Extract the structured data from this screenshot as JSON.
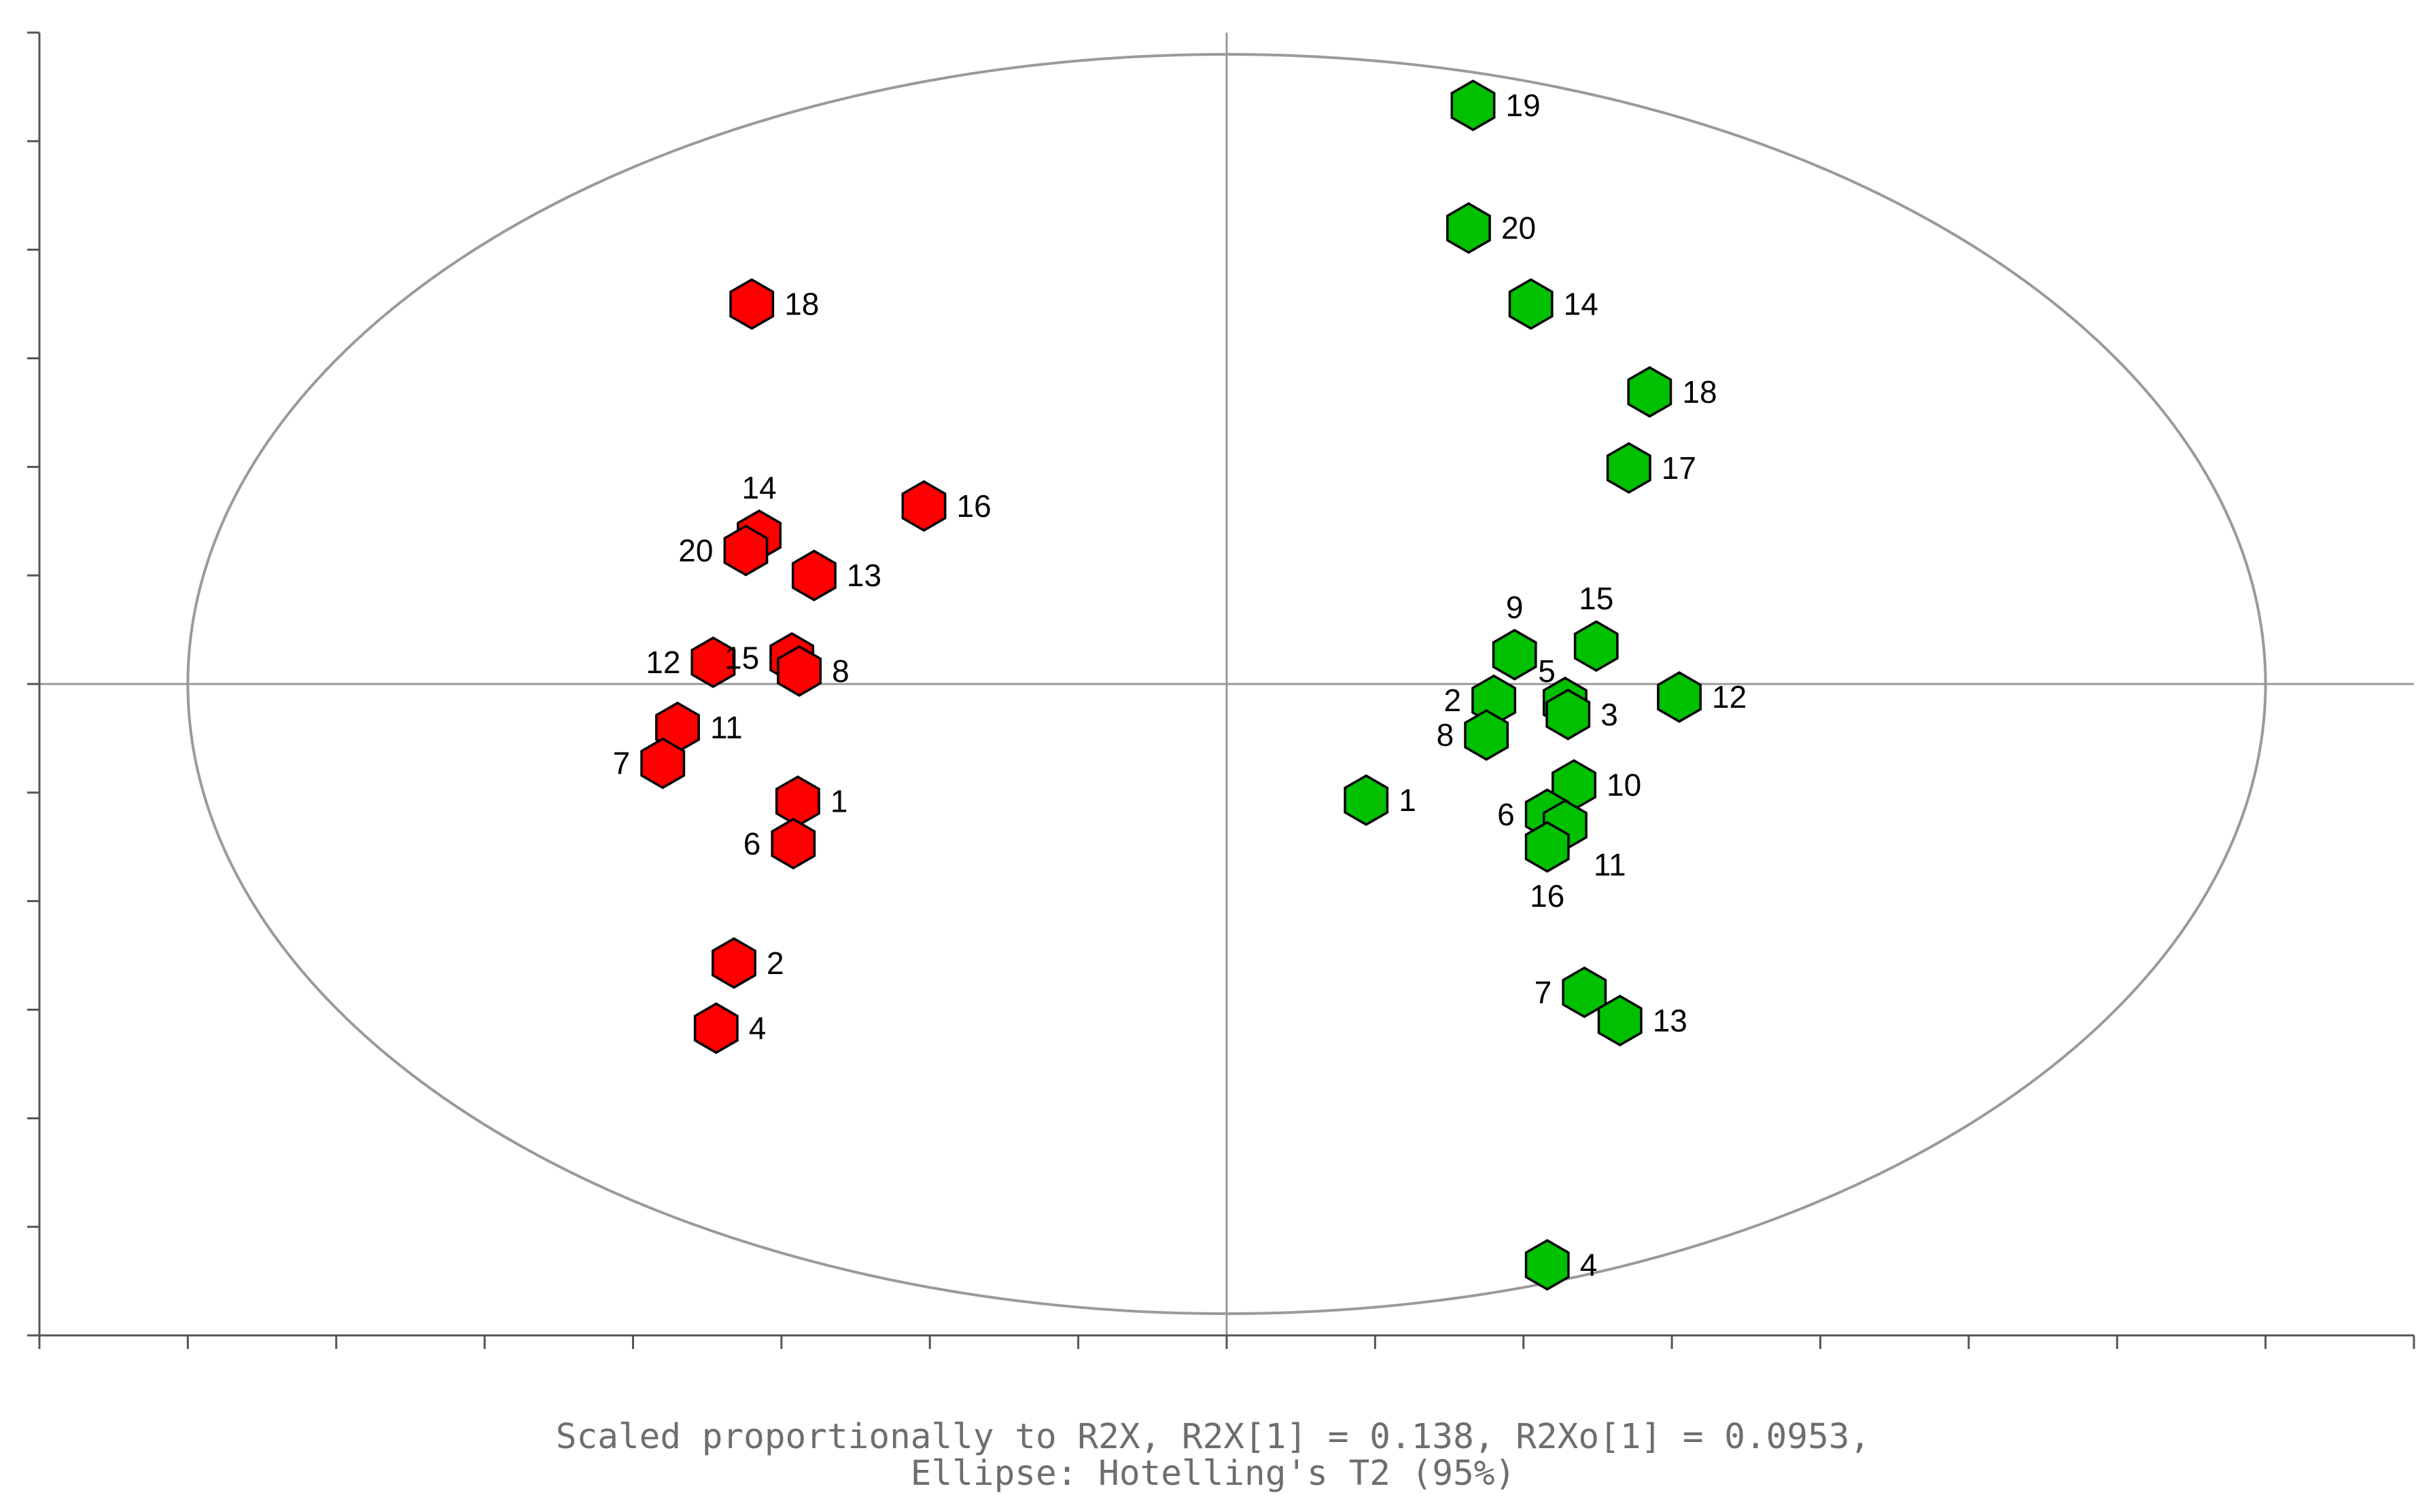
{
  "chart_data": {
    "type": "scatter",
    "title": "",
    "xlabel": "",
    "ylabel": "",
    "caption_lines": [
      "Scaled proportionally to R2X, R2X[1] = 0.138, R2Xo[1] = 0.0953,",
      "Ellipse: Hotelling's T2 (95%)"
    ],
    "xlim": [
      -8,
      8
    ],
    "ylim": [
      -6,
      6
    ],
    "x_ticks": [
      -8,
      -7,
      -6,
      -5,
      -4,
      -3,
      -2,
      -1,
      0,
      1,
      2,
      3,
      4,
      5,
      6,
      7,
      8
    ],
    "y_ticks": [
      -6,
      -5,
      -4,
      -3,
      -2,
      -1,
      0,
      1,
      2,
      3,
      4,
      5,
      6
    ],
    "tick_labels_visible": false,
    "grid": false,
    "reference_lines": {
      "x": 0,
      "y": 0
    },
    "ellipse": {
      "cx": 0,
      "cy": 0,
      "rx": 7,
      "ry": 5.8
    },
    "colors": {
      "red": "#ff0000",
      "green": "#00c000"
    },
    "series": [
      {
        "color": "#ff0000",
        "points": [
          {
            "label": "18",
            "x": -3.2,
            "y": 3.5,
            "label_pos": "right"
          },
          {
            "label": "16",
            "x": -2.04,
            "y": 1.64,
            "label_pos": "right"
          },
          {
            "label": "14",
            "x": -3.15,
            "y": 1.37,
            "label_pos": "above"
          },
          {
            "label": "20",
            "x": -3.24,
            "y": 1.23,
            "label_pos": "left"
          },
          {
            "label": "13",
            "x": -2.78,
            "y": 1.0,
            "label_pos": "right"
          },
          {
            "label": "12",
            "x": -3.46,
            "y": 0.2,
            "label_pos": "left"
          },
          {
            "label": "15",
            "x": -2.93,
            "y": 0.24,
            "label_pos": "left"
          },
          {
            "label": "8",
            "x": -2.88,
            "y": 0.12,
            "label_pos": "right"
          },
          {
            "label": "11",
            "x": -3.7,
            "y": -0.4,
            "label_pos": "right"
          },
          {
            "label": "7",
            "x": -3.8,
            "y": -0.73,
            "label_pos": "left"
          },
          {
            "label": "1",
            "x": -2.89,
            "y": -1.08,
            "label_pos": "right"
          },
          {
            "label": "6",
            "x": -2.92,
            "y": -1.47,
            "label_pos": "left"
          },
          {
            "label": "2",
            "x": -3.32,
            "y": -2.57,
            "label_pos": "right"
          },
          {
            "label": "4",
            "x": -3.44,
            "y": -3.17,
            "label_pos": "right"
          }
        ]
      },
      {
        "color": "#00c000",
        "points": [
          {
            "label": "19",
            "x": 1.66,
            "y": 5.33,
            "label_pos": "right"
          },
          {
            "label": "20",
            "x": 1.63,
            "y": 4.2,
            "label_pos": "right"
          },
          {
            "label": "14",
            "x": 2.05,
            "y": 3.5,
            "label_pos": "right"
          },
          {
            "label": "18",
            "x": 2.85,
            "y": 2.69,
            "label_pos": "right"
          },
          {
            "label": "17",
            "x": 2.71,
            "y": 1.99,
            "label_pos": "right"
          },
          {
            "label": "9",
            "x": 1.94,
            "y": 0.27,
            "label_pos": "above"
          },
          {
            "label": "15",
            "x": 2.49,
            "y": 0.35,
            "label_pos": "above"
          },
          {
            "label": "2",
            "x": 1.8,
            "y": -0.15,
            "label_pos": "left"
          },
          {
            "label": "5",
            "x": 2.28,
            "y": -0.17,
            "label_pos": "above-left"
          },
          {
            "label": "3",
            "x": 2.3,
            "y": -0.28,
            "label_pos": "right"
          },
          {
            "label": "12",
            "x": 3.05,
            "y": -0.12,
            "label_pos": "right"
          },
          {
            "label": "8",
            "x": 1.75,
            "y": -0.47,
            "label_pos": "left"
          },
          {
            "label": "1",
            "x": 0.94,
            "y": -1.07,
            "label_pos": "right"
          },
          {
            "label": "10",
            "x": 2.34,
            "y": -0.93,
            "label_pos": "right"
          },
          {
            "label": "6",
            "x": 2.16,
            "y": -1.2,
            "label_pos": "left"
          },
          {
            "label": "11",
            "x": 2.28,
            "y": -1.3,
            "label_pos": "below-right"
          },
          {
            "label": "16",
            "x": 2.16,
            "y": -1.5,
            "label_pos": "below"
          },
          {
            "label": "7",
            "x": 2.41,
            "y": -2.84,
            "label_pos": "left"
          },
          {
            "label": "13",
            "x": 2.65,
            "y": -3.1,
            "label_pos": "right"
          },
          {
            "label": "4",
            "x": 2.16,
            "y": -5.35,
            "label_pos": "right"
          }
        ]
      }
    ]
  }
}
